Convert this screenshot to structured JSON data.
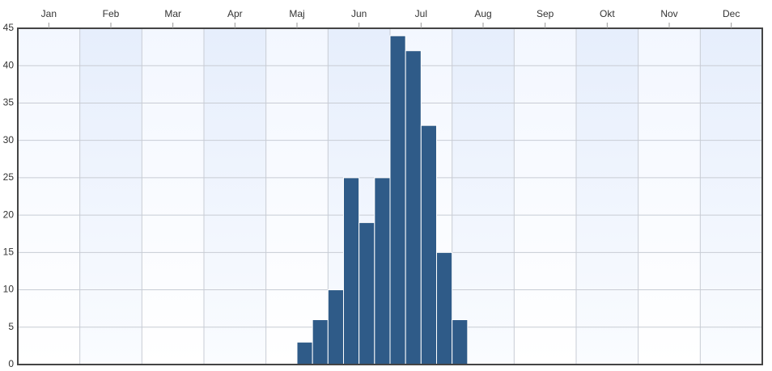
{
  "chart_data": {
    "type": "histogram",
    "bins": [
      4.5,
      4.75,
      5,
      5.25,
      5.5,
      5.75,
      6,
      6.25,
      6.5,
      6.75,
      7,
      7.25
    ],
    "values": [
      3,
      6,
      10,
      25,
      19,
      25,
      44,
      42,
      32,
      15,
      6
    ],
    "color": "#2f5b88",
    "xlim": [
      0,
      12
    ],
    "xticks": [
      {
        "value": 0.5,
        "label": "Jan"
      },
      {
        "value": 1.5,
        "label": "Feb"
      },
      {
        "value": 2.5,
        "label": "Mar"
      },
      {
        "value": 3.5,
        "label": "Apr"
      },
      {
        "value": 4.5,
        "label": "Maj"
      },
      {
        "value": 5.5,
        "label": "Jun"
      },
      {
        "value": 6.5,
        "label": "Jul"
      },
      {
        "value": 7.5,
        "label": "Aug"
      },
      {
        "value": 8.5,
        "label": "Sep"
      },
      {
        "value": 9.5,
        "label": "Okt"
      },
      {
        "value": 10.5,
        "label": "Nov"
      },
      {
        "value": 11.5,
        "label": "Dec"
      }
    ],
    "ylim": [
      0,
      45
    ],
    "yticks": [
      0,
      5,
      10,
      15,
      20,
      25,
      30,
      35,
      40,
      45
    ],
    "grid": true
  }
}
